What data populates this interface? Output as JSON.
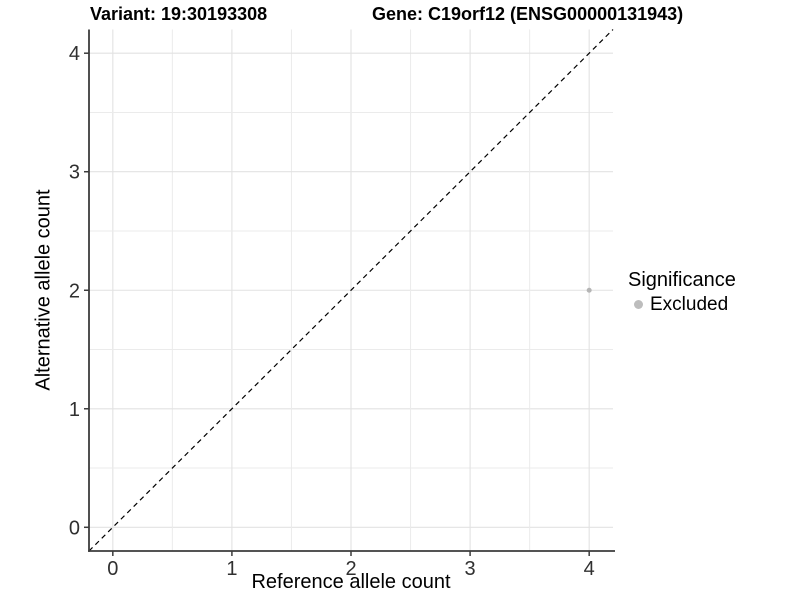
{
  "chart_data": {
    "type": "scatter",
    "title_left": "Variant: 19:30193308",
    "title_right": "Gene: C19orf12 (ENSG00000131943)",
    "xlabel": "Reference allele count",
    "ylabel": "Alternative allele count",
    "xlim": [
      -0.2,
      4.2
    ],
    "ylim": [
      -0.2,
      4.2
    ],
    "x_ticks": [
      0,
      1,
      2,
      3,
      4
    ],
    "y_ticks": [
      0,
      1,
      2,
      3,
      4
    ],
    "grid": {
      "visible": true,
      "minor_every": 0.5,
      "major_color": "#e2e2e2",
      "minor_color": "#ebebeb"
    },
    "reference_line": {
      "type": "abline",
      "slope": 1,
      "intercept": 0,
      "style": "dashed",
      "color": "#000000"
    },
    "series": [
      {
        "name": "Excluded",
        "color": "#b5b5b5",
        "points": [
          {
            "x": 4,
            "y": 2
          }
        ]
      }
    ],
    "legend": {
      "title": "Significance",
      "position": "right",
      "items": [
        {
          "label": "Excluded",
          "color": "#bdbdbd"
        }
      ]
    },
    "colors": {
      "axis_line": "#3c3c3c",
      "tick_text": "#303030"
    }
  }
}
